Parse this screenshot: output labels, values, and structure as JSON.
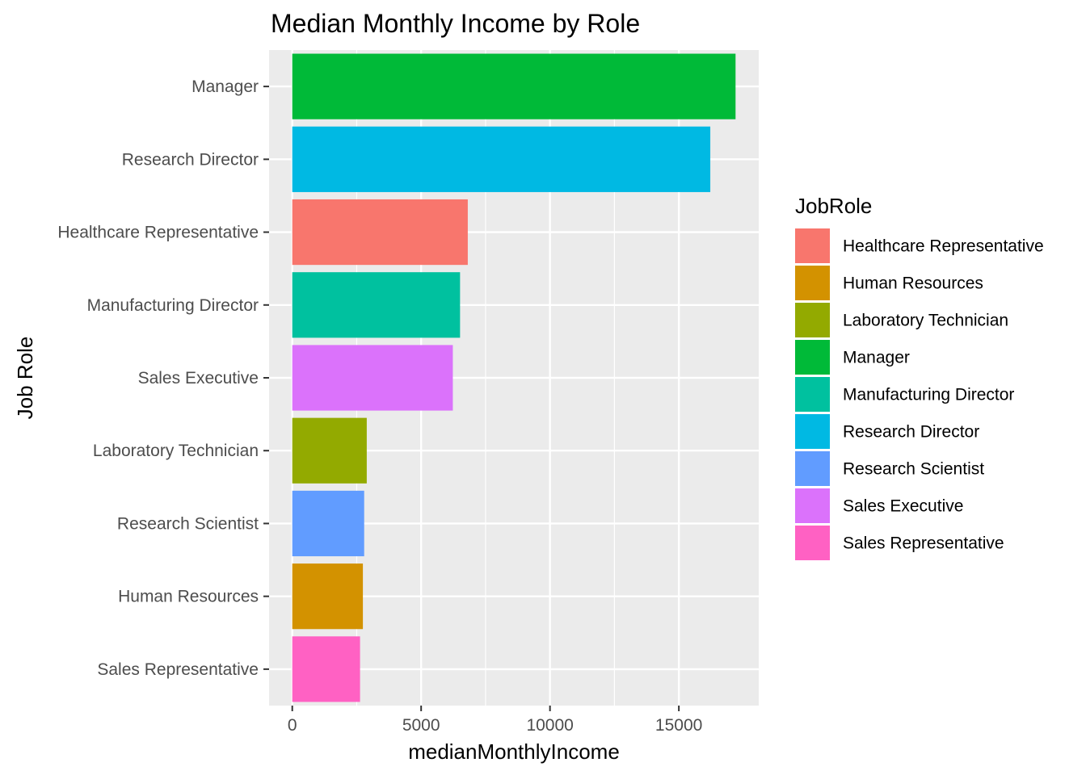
{
  "chart_data": {
    "type": "bar",
    "orientation": "horizontal",
    "title": "Median Monthly Income by Role",
    "xlabel": "medianMonthlyIncome",
    "ylabel": "Job Role",
    "xlim": [
      -900,
      18100
    ],
    "xticks": [
      0,
      5000,
      10000,
      15000
    ],
    "xtick_labels": [
      "0",
      "5000",
      "10000",
      "15000"
    ],
    "grid": true,
    "legend_position": "right",
    "categories": [
      "Manager",
      "Research Director",
      "Healthcare Representative",
      "Manufacturing Director",
      "Sales Executive",
      "Laboratory Technician",
      "Research Scientist",
      "Human Resources",
      "Sales Representative"
    ],
    "values": [
      17200,
      16220,
      6810,
      6510,
      6230,
      2890,
      2790,
      2740,
      2630
    ],
    "colors": {
      "Healthcare Representative": "#F8766D",
      "Human Resources": "#D39200",
      "Laboratory Technician": "#93AA00",
      "Manager": "#00BA38",
      "Manufacturing Director": "#00C19F",
      "Research Director": "#00B9E3",
      "Research Scientist": "#619CFF",
      "Sales Executive": "#DB72FB",
      "Sales Representative": "#FF61C3"
    },
    "legend": {
      "title": "JobRole",
      "entries": [
        "Healthcare Representative",
        "Human Resources",
        "Laboratory Technician",
        "Manager",
        "Manufacturing Director",
        "Research Director",
        "Research Scientist",
        "Sales Executive",
        "Sales Representative"
      ]
    }
  }
}
